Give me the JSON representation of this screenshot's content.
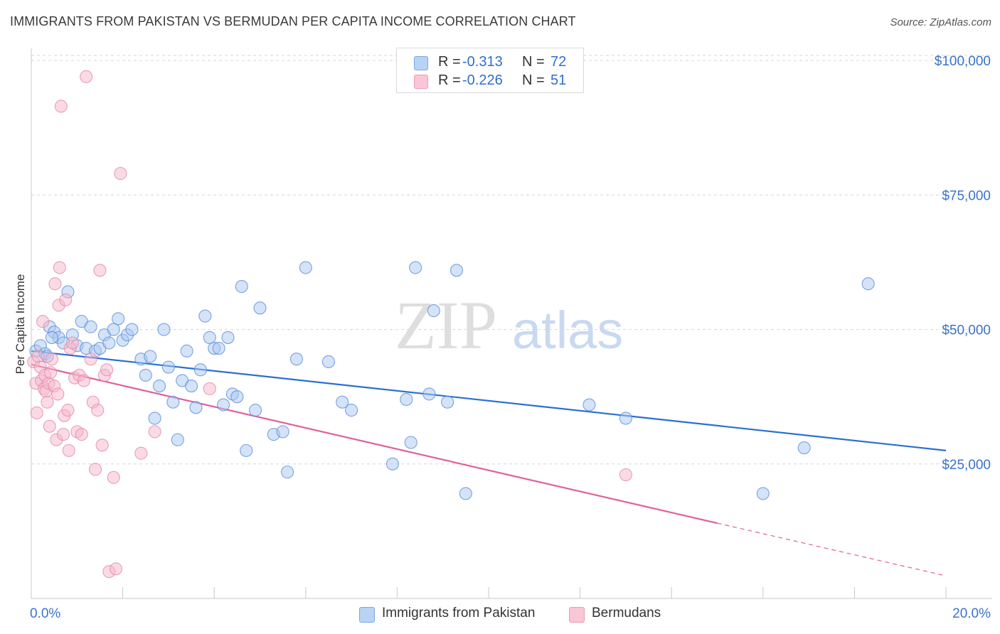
{
  "title": "IMMIGRANTS FROM PAKISTAN VS BERMUDAN PER CAPITA INCOME CORRELATION CHART",
  "source": "Source: ZipAtlas.com",
  "watermark": {
    "zip": "ZIP",
    "atlas": "atlas"
  },
  "colors": {
    "blue_fill": "#aac8f2",
    "blue_stroke": "#5a8fd8",
    "blue_line": "#2a6fd4",
    "pink_fill": "#f6b8cb",
    "pink_stroke": "#e58aa8",
    "pink_line": "#e0609a",
    "tick_label": "#3b73c9",
    "grid": "#d6d6d6"
  },
  "legend": {
    "rows": [
      {
        "r_label": "R =",
        "r_value": "-0.313",
        "n_label": "N =",
        "n_value": "72"
      },
      {
        "r_label": "R =",
        "r_value": "-0.226",
        "n_label": "N =",
        "n_value": "51"
      }
    ]
  },
  "bottom_legend": [
    "Immigrants from Pakistan",
    "Bermudans"
  ],
  "chart_data": {
    "type": "scatter",
    "title": "IMMIGRANTS FROM PAKISTAN VS BERMUDAN PER CAPITA INCOME CORRELATION CHART",
    "xlabel": "",
    "ylabel": "Per Capita Income",
    "xlim": [
      0,
      20
    ],
    "ylim": [
      0,
      102000
    ],
    "x_tick_labels": [
      "0.0%",
      "20.0%"
    ],
    "y_ticks": [
      25000,
      50000,
      75000,
      100000
    ],
    "y_tick_labels": [
      "$25,000",
      "$50,000",
      "$75,000",
      "$100,000"
    ],
    "grid": "horizontal dashed",
    "legend_position": "top-center",
    "series": [
      {
        "name": "Immigrants from Pakistan",
        "r": -0.313,
        "n": 72,
        "trend": {
          "x": [
            0,
            20
          ],
          "y": [
            46000,
            27500
          ]
        },
        "points": [
          [
            0.1,
            46000
          ],
          [
            0.2,
            47000
          ],
          [
            0.3,
            45500
          ],
          [
            0.4,
            50500
          ],
          [
            0.5,
            49500
          ],
          [
            0.6,
            48500
          ],
          [
            0.7,
            47500
          ],
          [
            0.8,
            57000
          ],
          [
            0.9,
            49000
          ],
          [
            1.0,
            47000
          ],
          [
            1.1,
            51500
          ],
          [
            1.2,
            46500
          ],
          [
            1.3,
            50500
          ],
          [
            1.4,
            46000
          ],
          [
            1.5,
            46500
          ],
          [
            1.6,
            49000
          ],
          [
            1.7,
            47500
          ],
          [
            1.8,
            50000
          ],
          [
            1.9,
            52000
          ],
          [
            2.0,
            48000
          ],
          [
            2.1,
            49000
          ],
          [
            2.2,
            50000
          ],
          [
            2.4,
            44500
          ],
          [
            2.5,
            41500
          ],
          [
            2.6,
            45000
          ],
          [
            2.7,
            33500
          ],
          [
            2.8,
            39500
          ],
          [
            2.9,
            50000
          ],
          [
            3.0,
            43000
          ],
          [
            3.1,
            36500
          ],
          [
            3.2,
            29500
          ],
          [
            3.3,
            40500
          ],
          [
            3.4,
            46000
          ],
          [
            3.5,
            39500
          ],
          [
            3.6,
            35500
          ],
          [
            3.7,
            42500
          ],
          [
            3.8,
            52500
          ],
          [
            3.9,
            48500
          ],
          [
            4.0,
            46500
          ],
          [
            4.1,
            46500
          ],
          [
            4.2,
            36000
          ],
          [
            4.3,
            48500
          ],
          [
            4.4,
            38000
          ],
          [
            4.5,
            37500
          ],
          [
            4.6,
            58000
          ],
          [
            4.7,
            27500
          ],
          [
            4.9,
            35000
          ],
          [
            5.0,
            54000
          ],
          [
            5.3,
            30500
          ],
          [
            5.5,
            31000
          ],
          [
            5.6,
            23500
          ],
          [
            5.8,
            44500
          ],
          [
            6.0,
            61500
          ],
          [
            6.5,
            44000
          ],
          [
            6.8,
            36500
          ],
          [
            7.0,
            35000
          ],
          [
            7.9,
            25000
          ],
          [
            8.2,
            37000
          ],
          [
            8.3,
            29000
          ],
          [
            8.4,
            61500
          ],
          [
            8.7,
            38000
          ],
          [
            8.8,
            53500
          ],
          [
            9.1,
            36500
          ],
          [
            9.3,
            61000
          ],
          [
            9.5,
            19500
          ],
          [
            12.2,
            36000
          ],
          [
            13.0,
            33500
          ],
          [
            16.0,
            19500
          ],
          [
            16.9,
            28000
          ],
          [
            18.3,
            58500
          ],
          [
            0.35,
            45000
          ],
          [
            0.45,
            48500
          ]
        ]
      },
      {
        "name": "Bermudans",
        "r": -0.226,
        "n": 51,
        "trend": {
          "x": [
            0,
            15
          ],
          "y": [
            43500,
            14000
          ]
        },
        "trend_dashed": {
          "x": [
            15,
            20
          ],
          "y": [
            14000,
            4200
          ]
        },
        "points": [
          [
            0.05,
            44000
          ],
          [
            0.1,
            40000
          ],
          [
            0.12,
            34500
          ],
          [
            0.15,
            45000
          ],
          [
            0.2,
            43000
          ],
          [
            0.22,
            40500
          ],
          [
            0.25,
            51500
          ],
          [
            0.28,
            39000
          ],
          [
            0.3,
            41500
          ],
          [
            0.32,
            38500
          ],
          [
            0.35,
            36500
          ],
          [
            0.38,
            40000
          ],
          [
            0.4,
            32000
          ],
          [
            0.42,
            42000
          ],
          [
            0.45,
            44500
          ],
          [
            0.5,
            39500
          ],
          [
            0.52,
            58500
          ],
          [
            0.55,
            29500
          ],
          [
            0.58,
            38000
          ],
          [
            0.6,
            54500
          ],
          [
            0.62,
            61500
          ],
          [
            0.65,
            91500
          ],
          [
            0.7,
            30500
          ],
          [
            0.72,
            34000
          ],
          [
            0.75,
            55500
          ],
          [
            0.8,
            35000
          ],
          [
            0.82,
            27500
          ],
          [
            0.85,
            46500
          ],
          [
            0.9,
            47500
          ],
          [
            0.95,
            41000
          ],
          [
            1.0,
            31000
          ],
          [
            1.05,
            41500
          ],
          [
            1.1,
            30500
          ],
          [
            1.15,
            40500
          ],
          [
            1.2,
            97000
          ],
          [
            1.3,
            44500
          ],
          [
            1.35,
            36500
          ],
          [
            1.4,
            24000
          ],
          [
            1.45,
            35000
          ],
          [
            1.5,
            61000
          ],
          [
            1.55,
            28500
          ],
          [
            1.6,
            41500
          ],
          [
            1.65,
            42500
          ],
          [
            1.7,
            5000
          ],
          [
            1.8,
            22500
          ],
          [
            1.85,
            5500
          ],
          [
            1.95,
            79000
          ],
          [
            2.4,
            27000
          ],
          [
            2.7,
            31000
          ],
          [
            3.9,
            39000
          ],
          [
            13.0,
            23000
          ]
        ]
      }
    ]
  }
}
